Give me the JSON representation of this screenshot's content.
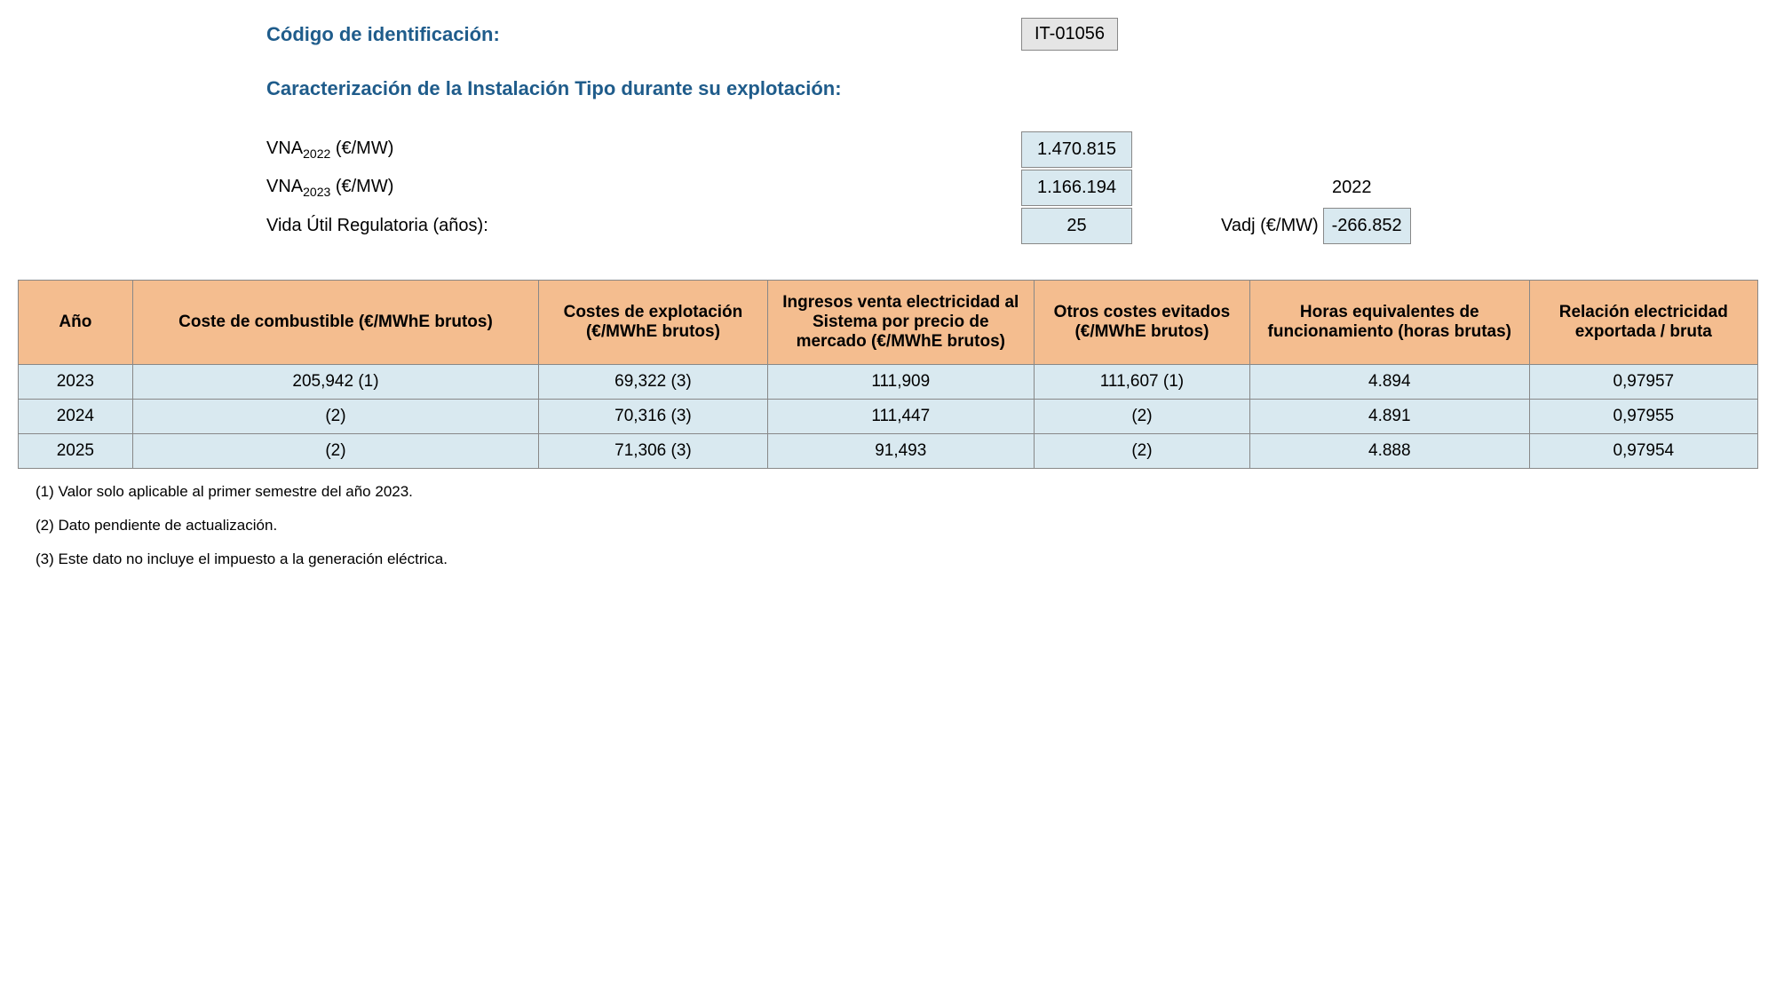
{
  "header": {
    "codigo_label": "Código de identificación:",
    "codigo_value": "IT-01056",
    "section_title": "Caracterización de la Instalación Tipo durante su explotación:"
  },
  "params": {
    "vna2022_label_pre": "VNA",
    "vna2022_sub": "2022",
    "vna2022_label_post": " (€/MW)",
    "vna2022_value": "1.470.815",
    "vna2023_label_pre": "VNA",
    "vna2023_sub": "2023",
    "vna2023_label_post": " (€/MW)",
    "vna2023_value": "1.166.194",
    "year_side": "2022",
    "vida_label": "Vida Útil Regulatoria (años):",
    "vida_value": "25",
    "vadj_label": "Vadj (€/MW)",
    "vadj_value": "-266.852"
  },
  "table": {
    "headers": {
      "ano": "Año",
      "coste_combustible": "Coste de combustible (€/MWhE brutos)",
      "costes_explotacion": "Costes de explotación (€/MWhE brutos)",
      "ingresos": "Ingresos venta electricidad al Sistema por precio de mercado (€/MWhE brutos)",
      "otros_costes": "Otros costes evitados (€/MWhE brutos)",
      "horas": "Horas equivalentes de funcionamiento (horas brutas)",
      "relacion": "Relación electricidad exportada / bruta"
    },
    "rows": [
      {
        "ano": "2023",
        "coste_combustible": "205,942 (1)",
        "costes_explotacion": "69,322 (3)",
        "ingresos": "111,909",
        "otros_costes": "111,607 (1)",
        "horas": "4.894",
        "relacion": "0,97957"
      },
      {
        "ano": "2024",
        "coste_combustible": "(2)",
        "costes_explotacion": "70,316 (3)",
        "ingresos": "111,447",
        "otros_costes": "(2)",
        "horas": "4.891",
        "relacion": "0,97955"
      },
      {
        "ano": "2025",
        "coste_combustible": "(2)",
        "costes_explotacion": "71,306 (3)",
        "ingresos": "91,493",
        "otros_costes": "(2)",
        "horas": "4.888",
        "relacion": "0,97954"
      }
    ]
  },
  "footnotes": {
    "f1": "(1) Valor solo aplicable al primer semestre del año 2023.",
    "f2": "(2) Dato pendiente de actualización.",
    "f3": "(3) Este dato no incluye el impuesto a la generación eléctrica."
  },
  "colors": {
    "header_text": "#1f5c8b",
    "table_header_bg": "#f4bd8f",
    "table_cell_bg": "#d9e9f0",
    "code_bg": "#e5e5e5",
    "border": "#888888"
  }
}
